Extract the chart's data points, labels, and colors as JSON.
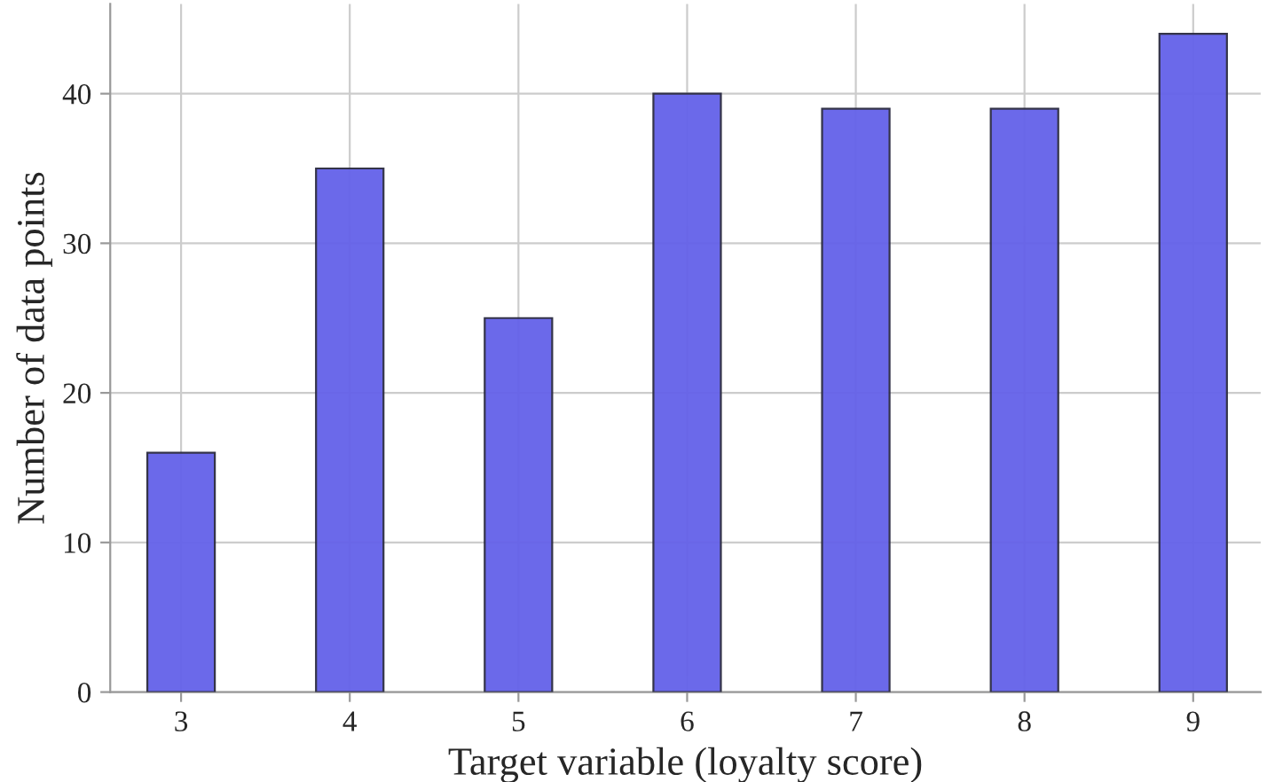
{
  "chart_data": {
    "type": "bar",
    "xlabel": "Target variable (loyalty score)",
    "ylabel": "Number of data points",
    "categories": [
      "3",
      "4",
      "5",
      "6",
      "7",
      "8",
      "9"
    ],
    "values": [
      16,
      35,
      25,
      40,
      39,
      39,
      44
    ],
    "color": "#6461e9",
    "ylim": [
      0,
      46
    ],
    "yticks": [
      0,
      10,
      20,
      30,
      40
    ],
    "grid": true,
    "legend": false
  }
}
